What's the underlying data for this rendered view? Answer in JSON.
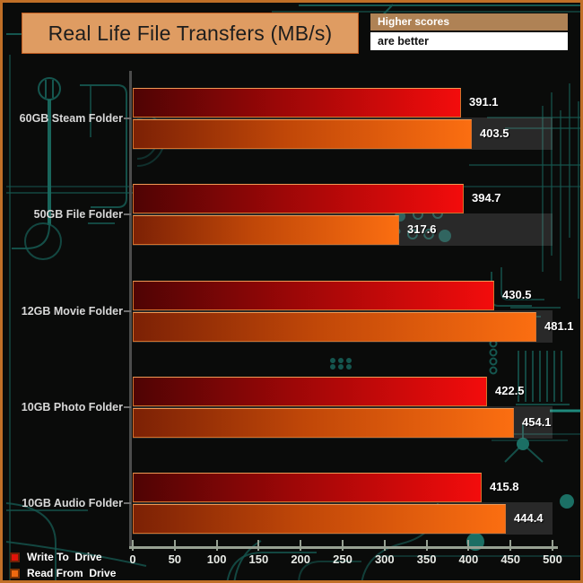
{
  "header": {
    "title": "Real Life File Transfers (MB/s)",
    "note_line1": "Higher scores",
    "note_line2": "are better"
  },
  "chart_data": {
    "type": "bar",
    "orientation": "horizontal",
    "title": "Real Life File Transfers (MB/s)",
    "categories": [
      "60GB Steam Folder",
      "50GB File Folder",
      "12GB Movie Folder",
      "10GB Photo Folder",
      "10GB Audio Folder"
    ],
    "series": [
      {
        "name": "Write To  Drive",
        "color": "#f30c0c",
        "values": [
          391.1,
          394.7,
          430.5,
          422.5,
          415.8
        ]
      },
      {
        "name": "Read From  Drive",
        "color": "#fb6e11",
        "values": [
          403.5,
          317.6,
          481.1,
          454.1,
          444.4
        ]
      }
    ],
    "xlim": [
      0,
      500
    ],
    "x_ticks": [
      0,
      50,
      100,
      150,
      200,
      250,
      300,
      350,
      400,
      450,
      500
    ],
    "value_labels": true,
    "grid": false,
    "legend_position": "bottom-left"
  },
  "colors": {
    "background": "#0a0b0a",
    "frame_border": "#c06f27",
    "title_box": "#df9c62",
    "note_box": "#af8255",
    "circuit_trace": "#15564f",
    "bar_write_dark": "#4f0404",
    "bar_write_bright": "#f30c0c",
    "bar_read_dark": "#7c2105",
    "bar_read_bright": "#fb6e11",
    "axis_line": "#97a193",
    "category_text": "#d8d8d8",
    "value_text": "#ffffff"
  }
}
